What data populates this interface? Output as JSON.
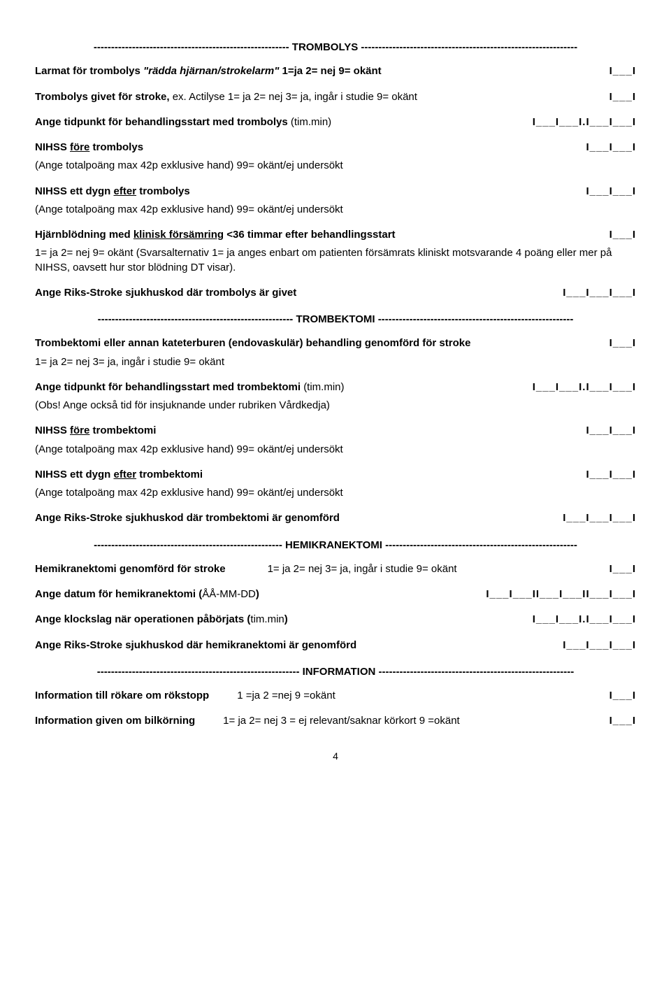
{
  "sections": {
    "trombolys": {
      "header": "-------------------------------------------------------- TROMBOLYS --------------------------------------------------------------",
      "q1_label_a": "Larmat för trombolys ",
      "q1_label_b": "\"rädda hjärnan/strokelarm\"",
      "q1_opts": "  1=ja   2= nej   9= okänt",
      "q1_box": "I___I",
      "q2_a": "Trombolys givet för stroke, ",
      "q2_b": "ex. Actilyse   1= ja  2= nej  3= ja, ingår i studie  9= okänt",
      "q2_box": "I___I",
      "q3": "Ange tidpunkt för behandlingsstart med trombolys ",
      "q3_unit": "(tim.min)",
      "q3_box": "I___I___I.I___I___I",
      "q4_a": "NIHSS ",
      "q4_u": "före",
      "q4_b": " trombolys",
      "q4_sub": "(Ange totalpoäng max 42p exklusive hand) 99= okänt/ej undersökt",
      "q4_box": "I___I___I",
      "q5_a": "NIHSS ett dygn ",
      "q5_u": "efter",
      "q5_b": " trombolys",
      "q5_sub": "(Ange totalpoäng max 42p exklusive hand) 99= okänt/ej undersökt",
      "q5_box": "I___I___I",
      "q6_a": "Hjärnblödning med ",
      "q6_u": "klinisk försämring",
      "q6_b": " <36 timmar efter behandlingsstart",
      "q6_sub": "1= ja  2= nej  9= okänt  (Svarsalternativ 1= ja anges enbart om patienten försämrats kliniskt motsvarande 4 poäng eller mer på NIHSS, oavsett hur stor blödning DT visar).",
      "q6_box": "I___I",
      "q7": "Ange Riks-Stroke sjukhuskod där trombolys är givet",
      "q7_box": "I___I___I___I"
    },
    "trombektomi": {
      "header": "-------------------------------------------------------- TROMBEKTOMI --------------------------------------------------------",
      "q1": "Trombektomi eller annan kateterburen (endovaskulär) behandling genomförd för stroke",
      "q1_opts": "1= ja  2= nej  3= ja, ingår i studie  9= okänt",
      "q1_box": "I___I",
      "q2_a": "Ange tidpunkt för behandlingsstart med trombektomi ",
      "q2_unit": "(tim.min)",
      "q2_sub": "(Obs! Ange också tid för insjuknande under rubriken Vårdkedja)",
      "q2_box": "I___I___I.I___I___I",
      "q3_a": "NIHSS ",
      "q3_u": "före",
      "q3_b": " trombektomi",
      "q3_sub": "(Ange totalpoäng max 42p exklusive hand) 99= okänt/ej undersökt",
      "q3_box": "I___I___I",
      "q4_a": "NIHSS ett dygn ",
      "q4_u": "efter",
      "q4_b": " trombektomi",
      "q4_sub": "(Ange totalpoäng max 42p exklusive hand) 99= okänt/ej undersökt",
      "q4_box": "I___I___I",
      "q5": "Ange Riks-Stroke sjukhuskod där trombektomi är genomförd",
      "q5_box": "I___I___I___I"
    },
    "hemi": {
      "header": "------------------------------------------------------ HEMIKRANEKTOMI -------------------------------------------------------",
      "q1": "Hemikranektomi genomförd för stroke",
      "q1_opts": "1= ja  2= nej  3= ja, ingår i studie  9= okänt",
      "q1_box": "I___I",
      "q2_a": "Ange datum för hemikranektomi  (",
      "q2_b": "ÅÅ-MM-DD",
      "q2_c": ")",
      "q2_box": "I___I___II___I___II___I___I",
      "q3_a": "Ange klockslag när operationen påbörjats  (",
      "q3_b": "tim.min",
      "q3_c": ")",
      "q3_box": "I___I___I.I___I___I",
      "q4": "Ange Riks-Stroke sjukhuskod där hemikranektomi är genomförd",
      "q4_box": "I___I___I___I"
    },
    "info": {
      "header": "----------------------------------------------------------  INFORMATION  --------------------------------------------------------",
      "q1": "Information till rökare om rökstopp",
      "q1_opts": "1 =ja   2 =nej   9 =okänt",
      "q1_box": "I___I",
      "q2": "Information given om bilkörning",
      "q2_opts": "1= ja  2= nej  3 = ej relevant/saknar körkort  9 =okänt",
      "q2_box": "I___I"
    }
  },
  "page_number": "4"
}
